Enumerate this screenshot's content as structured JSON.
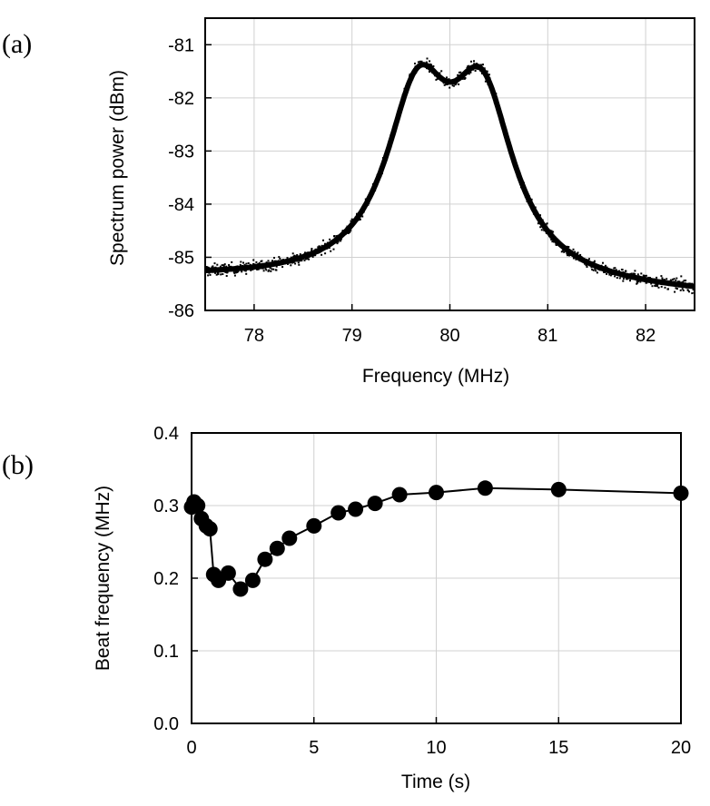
{
  "chart_data": [
    {
      "type": "scatter",
      "panel_label": "(a)",
      "xlabel": "Frequency (MHz)",
      "ylabel": "Spectrum power (dBm)",
      "xlim": [
        77.5,
        82.5
      ],
      "ylim": [
        -86,
        -80.5
      ],
      "xticks": [
        78,
        79,
        80,
        81,
        82
      ],
      "yticks": [
        -86,
        -85,
        -84,
        -83,
        -82,
        -81
      ],
      "fit_line": {
        "description": "double-Lorentzian fit",
        "baseline_left": -85.42,
        "baseline_right": -85.72,
        "peaks": [
          {
            "center": 79.67,
            "height": 3.25,
            "hwhm": 0.4
          },
          {
            "center": 80.33,
            "height": 3.25,
            "hwhm": 0.4
          }
        ]
      },
      "data_points": {
        "count": 1200,
        "x_range": [
          77.5,
          82.5
        ],
        "scatter_dBm": 0.08
      }
    },
    {
      "type": "line",
      "panel_label": "(b)",
      "xlabel": "Time (s)",
      "ylabel": "Beat frequency (MHz)",
      "xlim": [
        0,
        20
      ],
      "ylim": [
        0,
        0.4
      ],
      "xticks": [
        0,
        5,
        10,
        15,
        20
      ],
      "yticks": [
        0.0,
        0.1,
        0.2,
        0.3,
        0.4
      ],
      "ytick_labels": [
        "0.0",
        "0.1",
        "0.2",
        "0.3",
        "0.4"
      ],
      "x": [
        0.0,
        0.1,
        0.25,
        0.4,
        0.6,
        0.75,
        0.9,
        1.1,
        1.5,
        2.0,
        2.5,
        3.0,
        3.5,
        4.0,
        5.0,
        6.0,
        6.7,
        7.5,
        8.5,
        10.0,
        12.0,
        15.0,
        20.0
      ],
      "y": [
        0.298,
        0.305,
        0.3,
        0.282,
        0.272,
        0.268,
        0.205,
        0.197,
        0.207,
        0.185,
        0.197,
        0.226,
        0.241,
        0.255,
        0.272,
        0.29,
        0.295,
        0.303,
        0.315,
        0.318,
        0.324,
        0.322,
        0.317
      ]
    }
  ]
}
